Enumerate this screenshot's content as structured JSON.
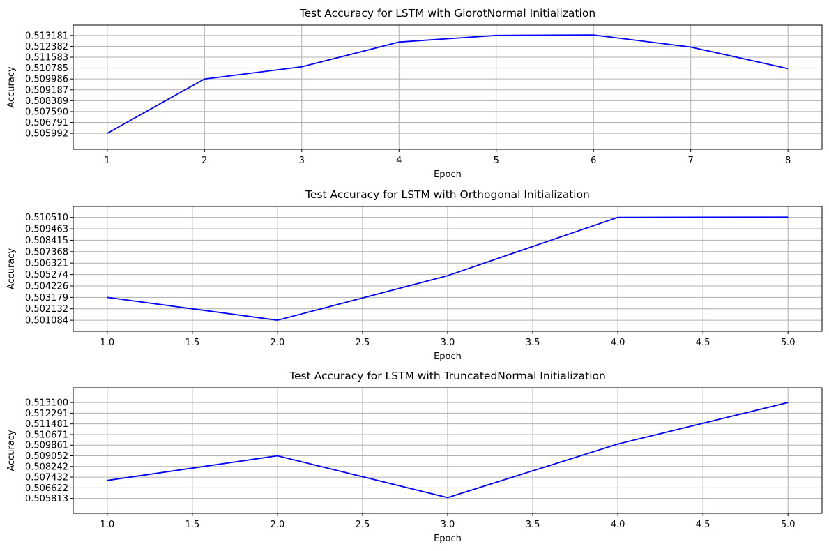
{
  "colors": {
    "series": "#0000ff",
    "grid": "#b0b0b0"
  },
  "chart_data": [
    {
      "type": "line",
      "title": "Test Accuracy for LSTM with GlorotNormal Initialization",
      "xlabel": "Epoch",
      "ylabel": "Accuracy",
      "grid": true,
      "xlim": [
        0.65,
        8.35
      ],
      "ylim": [
        0.50482,
        0.51394
      ],
      "x_ticks": [
        "1",
        "2",
        "3",
        "4",
        "5",
        "6",
        "7",
        "8"
      ],
      "y_ticks": [
        "0.505992",
        "0.506791",
        "0.507590",
        "0.508389",
        "0.509187",
        "0.509986",
        "0.510785",
        "0.511583",
        "0.512382",
        "0.513181"
      ],
      "series": [
        {
          "x": [
            1,
            2,
            3,
            4,
            5,
            6,
            7,
            8
          ],
          "y": [
            0.505992,
            0.509986,
            0.510876,
            0.512694,
            0.513181,
            0.513215,
            0.512327,
            0.510745
          ]
        }
      ]
    },
    {
      "type": "line",
      "title": "Test Accuracy for LSTM with Orthogonal Initialization",
      "xlabel": "Epoch",
      "ylabel": "Accuracy",
      "grid": true,
      "xlim": [
        0.8,
        5.2
      ],
      "ylim": [
        0.50007,
        0.51151
      ],
      "x_ticks": [
        "1.0",
        "1.5",
        "2.0",
        "2.5",
        "3.0",
        "3.5",
        "4.0",
        "4.5",
        "5.0"
      ],
      "y_ticks": [
        "0.501084",
        "0.502132",
        "0.503179",
        "0.504226",
        "0.505274",
        "0.506321",
        "0.507368",
        "0.508415",
        "0.509463",
        "0.510510"
      ],
      "series": [
        {
          "x": [
            1,
            2,
            3,
            4,
            5
          ],
          "y": [
            0.503179,
            0.501084,
            0.505168,
            0.51051,
            0.510533
          ]
        }
      ]
    },
    {
      "type": "line",
      "title": "Test Accuracy for LSTM with TruncatedNormal Initialization",
      "xlabel": "Epoch",
      "ylabel": "Accuracy",
      "grid": true,
      "xlim": [
        0.8,
        5.2
      ],
      "ylim": [
        0.50468,
        0.51422
      ],
      "x_ticks": [
        "1.0",
        "1.5",
        "2.0",
        "2.5",
        "3.0",
        "3.5",
        "4.0",
        "4.5",
        "5.0"
      ],
      "y_ticks": [
        "0.505813",
        "0.506622",
        "0.507432",
        "0.508242",
        "0.509052",
        "0.509861",
        "0.510671",
        "0.511481",
        "0.512291",
        "0.513100"
      ],
      "series": [
        {
          "x": [
            1,
            2,
            3,
            4,
            5
          ],
          "y": [
            0.50718,
            0.509052,
            0.50588,
            0.50995,
            0.5131
          ]
        }
      ]
    }
  ]
}
